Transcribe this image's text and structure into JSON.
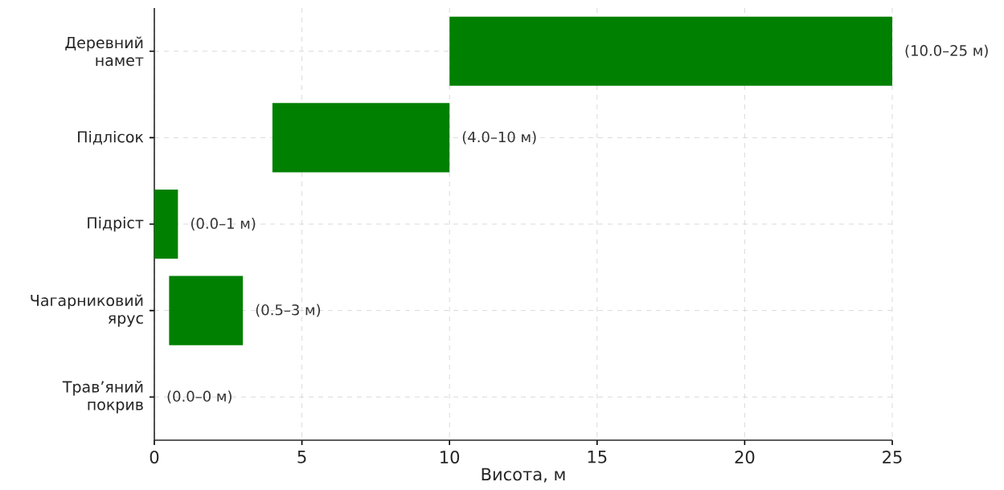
{
  "chart_data": {
    "type": "bar",
    "orientation": "horizontal",
    "xlabel": "Висота, м",
    "categories": [
      "Деревний намет",
      "Підлісок",
      "Підріст",
      "Чагарниковий ярус",
      "Трав’яний покрив"
    ],
    "base": [
      10,
      4,
      0,
      0.5,
      null
    ],
    "values": [
      15,
      6,
      0.8,
      2.5,
      null
    ],
    "value_labels": [
      "(10.0–25 м)",
      "(4.0–10 м)",
      "(0.0–1 м)",
      "(0.5–3 м)",
      "(0.0–0 м)"
    ],
    "color": "#008000",
    "xlim": [
      0,
      25
    ],
    "xticks": [
      0,
      5,
      10,
      15,
      20,
      25
    ],
    "grid": true
  }
}
